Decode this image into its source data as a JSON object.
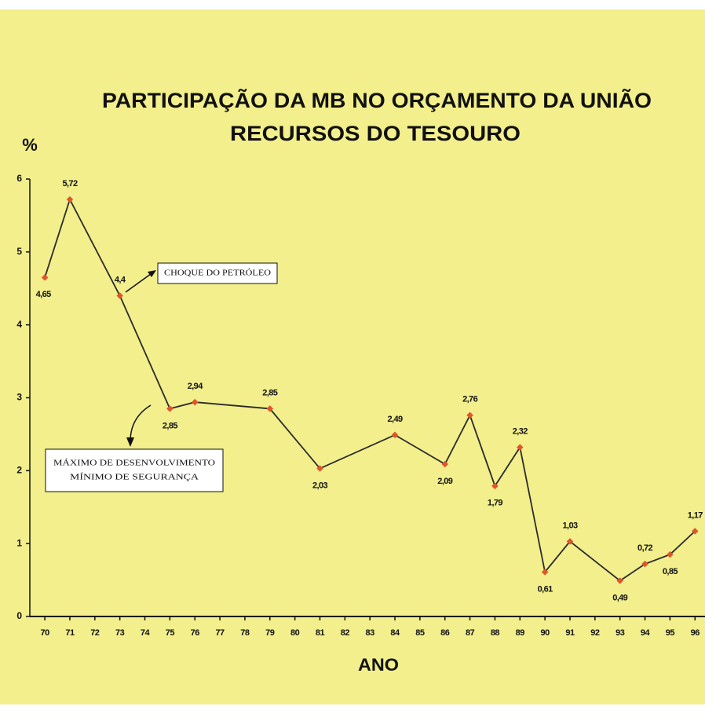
{
  "chart_data": {
    "type": "line",
    "title": "PARTICIPAÇÃO DA MB NO ORÇAMENTO DA UNIÃO",
    "subtitle": "RECURSOS DO TESOURO",
    "y_label": "%",
    "x_label": "ANO",
    "x": [
      70,
      71,
      73,
      75,
      76,
      79,
      81,
      84,
      86,
      87,
      88,
      89,
      90,
      91,
      93,
      94,
      95,
      96
    ],
    "series": [
      {
        "name": "MB",
        "color": "#2a2a2a",
        "marker_color": "#e0552a",
        "values": [
          4.65,
          5.72,
          4.4,
          2.85,
          2.94,
          2.85,
          2.03,
          2.49,
          2.09,
          2.76,
          1.79,
          2.32,
          0.61,
          1.03,
          0.49,
          0.72,
          0.85,
          1.17
        ],
        "value_labels": [
          "4,65",
          "5,72",
          "4,4",
          "2,85",
          "2,94",
          "2,85",
          "2,03",
          "2,49",
          "2,09",
          "2,76",
          "1,79",
          "2,32",
          "0,61",
          "1,03",
          "0,49",
          "0,72",
          "0,85",
          "1,17"
        ]
      }
    ],
    "xlim": [
      69.4,
      96.4
    ],
    "xticks": [
      70,
      71,
      72,
      73,
      74,
      75,
      76,
      77,
      78,
      79,
      80,
      81,
      82,
      83,
      84,
      85,
      86,
      87,
      88,
      89,
      90,
      91,
      92,
      93,
      94,
      95,
      96
    ],
    "ylim": [
      0,
      6
    ],
    "yticks": [
      0,
      1,
      2,
      3,
      4,
      5,
      6
    ],
    "annotations": [
      {
        "lines": [
          "CHOQUE DO PETRÓLEO"
        ]
      },
      {
        "lines": [
          "MÁXIMO DE DESENVOLVIMENTO",
          "MÍNIMO DE SEGURANÇA"
        ]
      }
    ]
  }
}
